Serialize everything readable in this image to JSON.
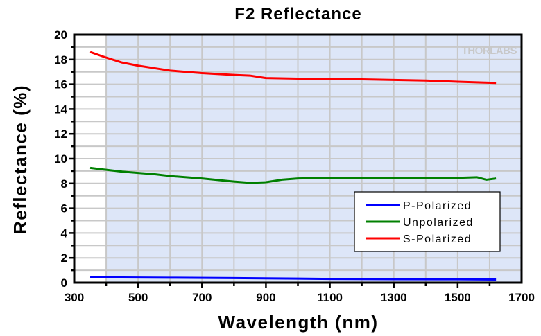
{
  "chart_data": {
    "type": "line",
    "title": "F2 Reflectance",
    "xlabel": "Wavelength (nm)",
    "ylabel": "Reflectance (%)",
    "xlim": [
      300,
      1700
    ],
    "ylim": [
      0,
      20
    ],
    "xticks": [
      300,
      500,
      700,
      900,
      1100,
      1300,
      1500,
      1700
    ],
    "yticks": [
      0,
      2,
      4,
      6,
      8,
      10,
      12,
      14,
      16,
      18,
      20
    ],
    "grid": true,
    "shaded_range": [
      400,
      1700
    ],
    "legend_position": "bottom-right",
    "watermark": "THORLABS",
    "series": [
      {
        "name": "P-Polarized",
        "color": "#0000ff",
        "x": [
          350,
          450,
          600,
          800,
          1000,
          1100,
          1300,
          1500,
          1620
        ],
        "y": [
          0.45,
          0.42,
          0.4,
          0.37,
          0.33,
          0.3,
          0.28,
          0.27,
          0.25
        ]
      },
      {
        "name": "Unpolarized",
        "color": "#008000",
        "x": [
          350,
          400,
          450,
          500,
          550,
          600,
          700,
          800,
          850,
          900,
          950,
          1000,
          1100,
          1200,
          1300,
          1400,
          1500,
          1560,
          1590,
          1620
        ],
        "y": [
          9.25,
          9.1,
          8.95,
          8.85,
          8.75,
          8.6,
          8.4,
          8.15,
          8.05,
          8.1,
          8.3,
          8.4,
          8.45,
          8.45,
          8.45,
          8.45,
          8.45,
          8.5,
          8.3,
          8.4
        ]
      },
      {
        "name": "S-Polarized",
        "color": "#ff0000",
        "x": [
          350,
          400,
          450,
          500,
          550,
          600,
          650,
          700,
          800,
          850,
          900,
          1000,
          1100,
          1200,
          1300,
          1400,
          1500,
          1620
        ],
        "y": [
          18.6,
          18.15,
          17.75,
          17.5,
          17.3,
          17.1,
          17.0,
          16.9,
          16.75,
          16.7,
          16.5,
          16.45,
          16.45,
          16.4,
          16.35,
          16.3,
          16.2,
          16.1
        ]
      }
    ]
  }
}
